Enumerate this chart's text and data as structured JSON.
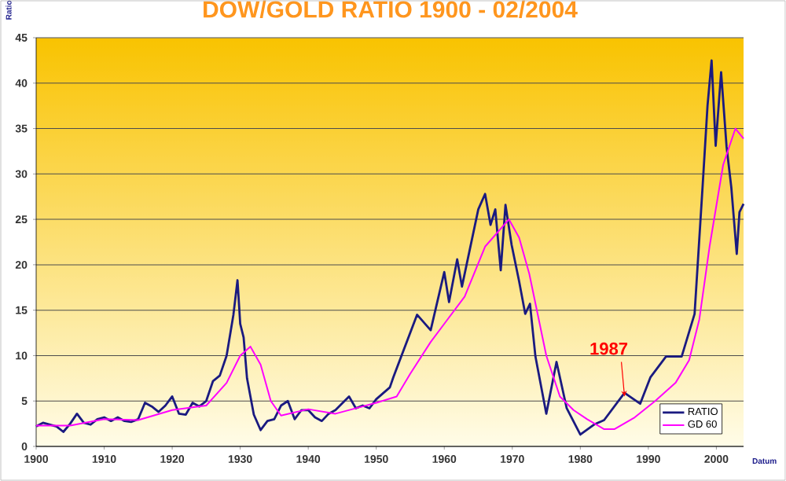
{
  "chart_data": {
    "type": "line",
    "title": "DOW/GOLD RATIO 1900 - 02/2004",
    "xlabel": "Datum",
    "ylabel": "Ratio",
    "xlim": [
      1900,
      2004
    ],
    "ylim": [
      0,
      45
    ],
    "xticks": [
      1900,
      1910,
      1920,
      1930,
      1940,
      1950,
      1960,
      1970,
      1980,
      1990,
      2000
    ],
    "yticks": [
      0,
      5,
      10,
      15,
      20,
      25,
      30,
      35,
      40,
      45
    ],
    "grid": "y",
    "legend": "bottom right",
    "marker": "none",
    "line_style": "solid",
    "annotations": [
      {
        "text": "1987",
        "x": 1986.5,
        "y": 5.5
      }
    ],
    "series": [
      {
        "name": "RATIO",
        "color": "#1a1a80",
        "x": [
          1900,
          1901,
          1903,
          1904,
          1905,
          1906,
          1907,
          1908,
          1909,
          1910,
          1911,
          1912,
          1913,
          1914,
          1915,
          1916,
          1917,
          1918,
          1919,
          1920,
          1921,
          1922,
          1923,
          1924,
          1925,
          1926,
          1927,
          1928,
          1929,
          1929.6,
          1930,
          1930.5,
          1931,
          1932,
          1933,
          1934,
          1935,
          1936,
          1937,
          1938,
          1939,
          1940,
          1941,
          1942,
          1943,
          1944,
          1946,
          1947,
          1948,
          1949,
          1950,
          1952,
          1952.5,
          1956,
          1958,
          1960,
          1960.7,
          1961.9,
          1962.6,
          1965,
          1966,
          1966.8,
          1967.5,
          1968.3,
          1969,
          1969.9,
          1971,
          1971.9,
          1972.6,
          1973.4,
          1975,
          1976.5,
          1978,
          1980,
          1982,
          1983.5,
          1986.5,
          1988.8,
          1990.3,
          1992.6,
          1994.9,
          1996.8,
          1998,
          1998.7,
          1999.3,
          1999.9,
          2000.7,
          2001.5,
          2002.2,
          2003,
          2003.4,
          2004
        ],
        "values": [
          2.2,
          2.6,
          2.2,
          1.6,
          2.5,
          3.6,
          2.6,
          2.4,
          3.0,
          3.2,
          2.8,
          3.2,
          2.8,
          2.7,
          3.0,
          4.8,
          4.4,
          3.8,
          4.5,
          5.5,
          3.6,
          3.5,
          4.8,
          4.4,
          5.0,
          7.2,
          7.8,
          10.0,
          14.5,
          18.3,
          13.5,
          12.0,
          7.5,
          3.5,
          1.8,
          2.8,
          3.0,
          4.5,
          5.0,
          3.0,
          4.0,
          4.0,
          3.2,
          2.8,
          3.6,
          4.0,
          5.5,
          4.2,
          4.5,
          4.2,
          5.2,
          6.5,
          7.6,
          14.5,
          12.8,
          19.2,
          15.9,
          20.6,
          17.6,
          26.1,
          27.8,
          24.4,
          26.1,
          19.4,
          26.6,
          22.2,
          18.2,
          14.6,
          15.7,
          9.9,
          3.6,
          9.3,
          4.2,
          1.3,
          2.4,
          2.9,
          5.9,
          4.7,
          7.6,
          9.9,
          9.9,
          14.6,
          28.9,
          37.5,
          42.5,
          33.1,
          41.2,
          33.0,
          28.5,
          21.2,
          25.8,
          26.7
        ]
      },
      {
        "name": "GD 60",
        "color": "#ff00ff",
        "x": [
          1900,
          1905,
          1910,
          1915,
          1920,
          1925,
          1928,
          1930,
          1931.5,
          1933,
          1934.5,
          1936,
          1940,
          1944,
          1948,
          1950,
          1953,
          1955,
          1958,
          1960,
          1963,
          1966,
          1969.5,
          1971,
          1972.5,
          1975,
          1977,
          1979,
          1981,
          1983.5,
          1985,
          1988,
          1991,
          1994,
          1996,
          1997.5,
          1999,
          2001,
          2002.8,
          2004
        ],
        "values": [
          2.3,
          2.3,
          3.0,
          2.9,
          4.0,
          4.5,
          7.0,
          10.0,
          11.0,
          9.0,
          5.0,
          3.4,
          4.1,
          3.6,
          4.4,
          4.8,
          5.5,
          8.0,
          11.5,
          13.5,
          16.5,
          22.0,
          25.0,
          23.0,
          19.0,
          10.0,
          5.5,
          4.0,
          3.0,
          1.9,
          1.9,
          3.2,
          5.0,
          7.0,
          9.5,
          14.0,
          22.0,
          31.0,
          35.0,
          33.9
        ]
      }
    ]
  }
}
